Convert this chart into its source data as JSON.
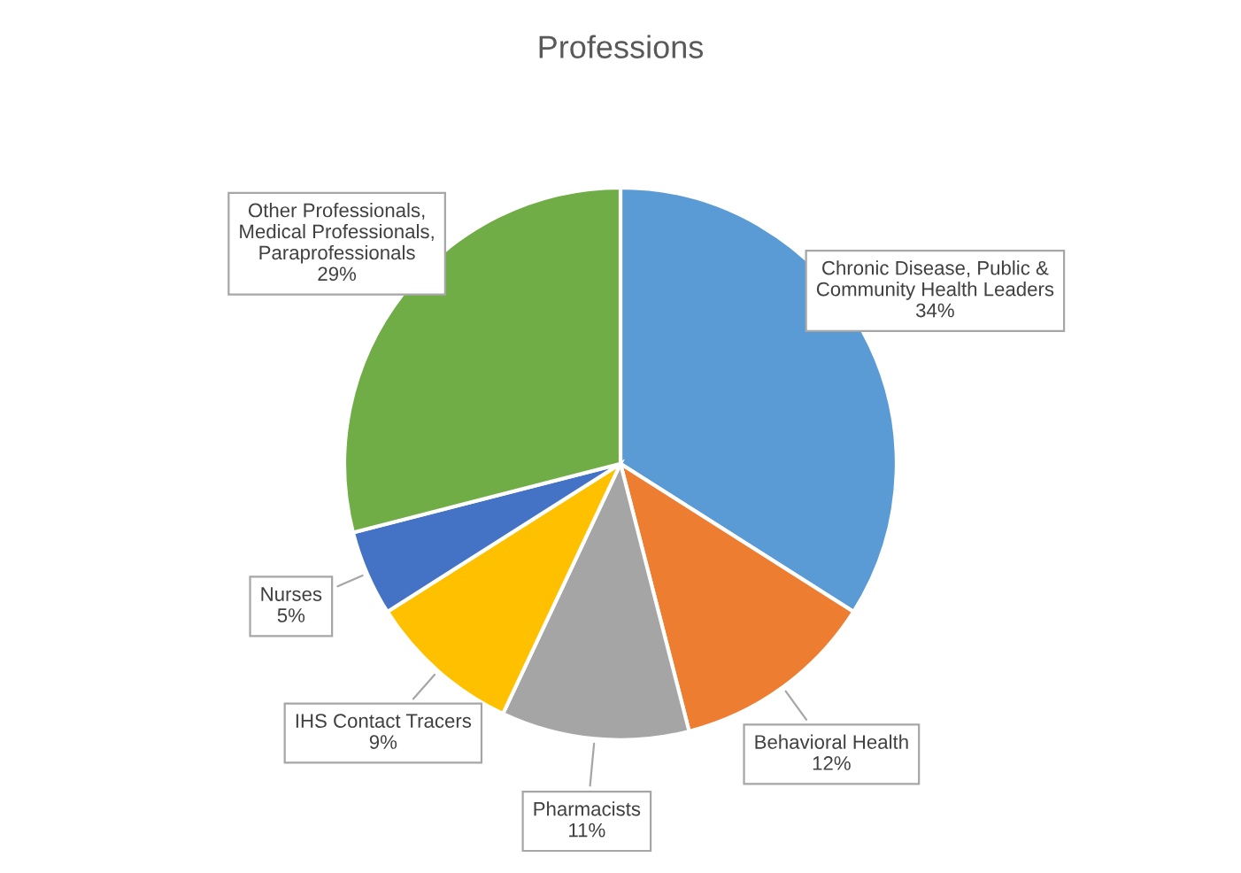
{
  "chart_data": {
    "type": "pie",
    "title": "Professions",
    "categories": [
      "Chronic Disease, Public &\nCommunity Health Leaders",
      "Behavioral Health",
      "Pharmacists",
      "IHS Contact Tracers",
      "Nurses",
      "Other Professionals,\nMedical Professionals,\nParaprofessionals"
    ],
    "values": [
      34,
      12,
      11,
      9,
      5,
      29
    ],
    "value_labels": [
      "34%",
      "12%",
      "11%",
      "9%",
      "5%",
      "29%"
    ],
    "colors": [
      "#5b9bd5",
      "#ed7d31",
      "#a5a5a5",
      "#ffc000",
      "#4472c4",
      "#70ad47"
    ],
    "legend": false
  }
}
